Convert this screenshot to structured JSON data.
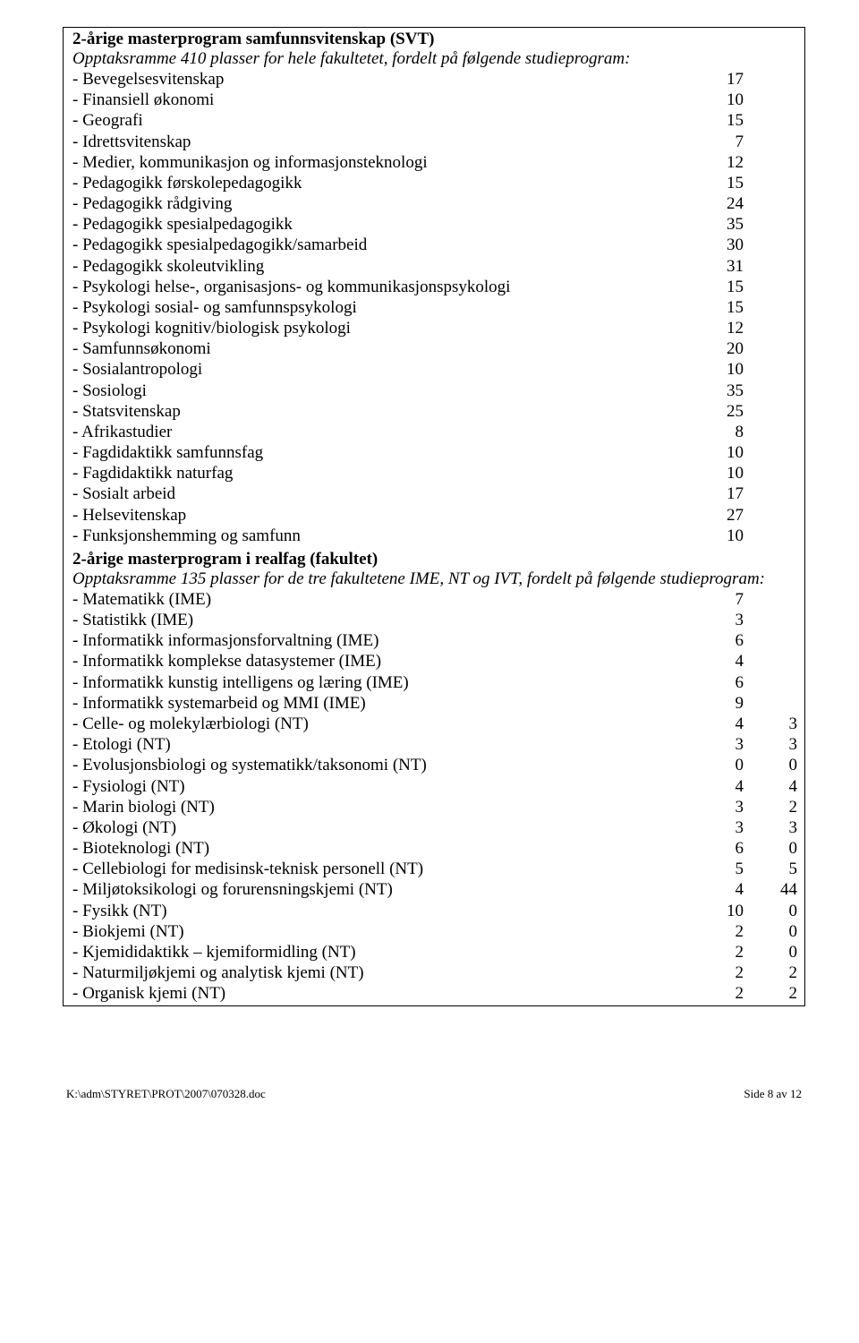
{
  "section1": {
    "title": "2-årige masterprogram samfunnsvitenskap (SVT)",
    "subtitle": "Opptaksramme 410 plasser for hele fakultetet, fordelt på følgende studieprogram:",
    "items": [
      {
        "label": "- Bevegelsesvitenskap",
        "v1": "17"
      },
      {
        "label": "- Finansiell økonomi",
        "v1": "10"
      },
      {
        "label": "- Geografi",
        "v1": "15"
      },
      {
        "label": "- Idrettsvitenskap",
        "v1": "7"
      },
      {
        "label": "- Medier, kommunikasjon og informasjonsteknologi",
        "v1": "12"
      },
      {
        "label": "- Pedagogikk førskolepedagogikk",
        "v1": "15"
      },
      {
        "label": "- Pedagogikk rådgiving",
        "v1": "24"
      },
      {
        "label": "- Pedagogikk spesialpedagogikk",
        "v1": "35"
      },
      {
        "label": "- Pedagogikk spesialpedagogikk/samarbeid",
        "v1": "30"
      },
      {
        "label": "- Pedagogikk skoleutvikling",
        "v1": "31"
      },
      {
        "label": "- Psykologi helse-, organisasjons- og kommunikasjonspsykologi",
        "v1": "15"
      },
      {
        "label": "- Psykologi sosial- og samfunnspsykologi",
        "v1": "15"
      },
      {
        "label": "- Psykologi kognitiv/biologisk psykologi",
        "v1": "12"
      },
      {
        "label": "- Samfunnsøkonomi",
        "v1": "20"
      },
      {
        "label": "- Sosialantropologi",
        "v1": "10"
      },
      {
        "label": "- Sosiologi",
        "v1": "35"
      },
      {
        "label": "- Statsvitenskap",
        "v1": "25"
      },
      {
        "label": "- Afrikastudier",
        "v1": "8"
      },
      {
        "label": "- Fagdidaktikk samfunnsfag",
        "v1": "10"
      },
      {
        "label": "- Fagdidaktikk naturfag",
        "v1": "10"
      },
      {
        "label": "- Sosialt arbeid",
        "v1": "17"
      },
      {
        "label": "- Helsevitenskap",
        "v1": "27"
      },
      {
        "label": "- Funksjonshemming og samfunn",
        "v1": "10"
      }
    ]
  },
  "section2": {
    "title": "2-årige masterprogram i realfag (fakultet)",
    "subtitle": "Opptaksramme 135 plasser for de tre fakultetene IME, NT og IVT, fordelt på følgende studieprogram:",
    "items": [
      {
        "label": "- Matematikk (IME)",
        "v1": "7"
      },
      {
        "label": "- Statistikk (IME)",
        "v1": "3"
      },
      {
        "label": "- Informatikk informasjonsforvaltning (IME)",
        "v1": "6"
      },
      {
        "label": "- Informatikk komplekse datasystemer (IME)",
        "v1": "4"
      },
      {
        "label": "- Informatikk kunstig intelligens og læring (IME)",
        "v1": "6"
      },
      {
        "label": "- Informatikk systemarbeid og MMI (IME)",
        "v1": "9"
      },
      {
        "label": "- Celle- og molekylærbiologi (NT)",
        "v1": "4",
        "v2": "3"
      },
      {
        "label": "- Etologi (NT)",
        "v1": "3",
        "v2": "3"
      },
      {
        "label": "- Evolusjonsbiologi og systematikk/taksonomi (NT)",
        "v1": "0",
        "v2": "0"
      },
      {
        "label": "- Fysiologi (NT)",
        "v1": "4",
        "v2": "4"
      },
      {
        "label": "- Marin biologi (NT)",
        "v1": "3",
        "v2": "2"
      },
      {
        "label": "- Økologi (NT)",
        "v1": "3",
        "v2": "3"
      },
      {
        "label": "- Bioteknologi (NT)",
        "v1": "6",
        "v2": "0"
      },
      {
        "label": "- Cellebiologi for medisinsk-teknisk personell (NT)",
        "v1": "5",
        "v2": "5"
      },
      {
        "label": "- Miljøtoksikologi og forurensningskjemi (NT)",
        "v1": "4",
        "v2": "44"
      },
      {
        "label": "- Fysikk (NT)",
        "v1": "10",
        "v2": "0"
      },
      {
        "label": "- Biokjemi (NT)",
        "v1": "2",
        "v2": "0"
      },
      {
        "label": "- Kjemididaktikk – kjemiformidling (NT)",
        "v1": "2",
        "v2": "0"
      },
      {
        "label": "- Naturmiljøkjemi og analytisk kjemi (NT)",
        "v1": "2",
        "v2": "2"
      },
      {
        "label": "- Organisk kjemi (NT)",
        "v1": "2",
        "v2": "2"
      }
    ]
  },
  "footer": {
    "left": "K:\\adm\\STYRET\\PROT\\2007\\070328.doc",
    "right": "Side 8 av 12"
  }
}
